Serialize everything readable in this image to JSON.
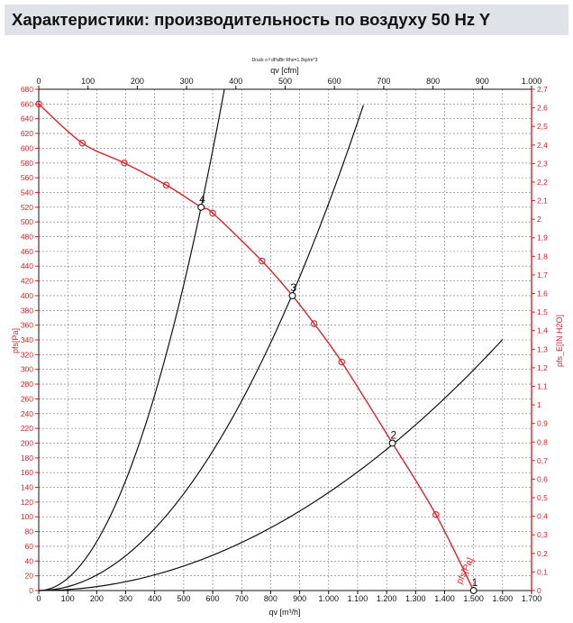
{
  "page": {
    "title": "Характеристики: производительность по воздуху 50 Hz Y"
  },
  "colors": {
    "red": "#e31e24",
    "black": "#111111",
    "grid": "#777777",
    "header_bg": "#dfe3e8"
  },
  "chart_data": {
    "type": "line",
    "subtitle": "Druck o f dPaBir Rho=1.2kp/m^3",
    "xlabel": "qv [m³/h]",
    "x2label": "qv [cfm]",
    "ylabel": "pfs[Pa]",
    "y2label": "pfs_E[IN H2O]",
    "xlim": [
      0,
      1700
    ],
    "x2lim": [
      0,
      1000
    ],
    "ylim": [
      0,
      680
    ],
    "y2lim": [
      0,
      2.7
    ],
    "x_ticks": [
      0,
      100,
      200,
      300,
      400,
      500,
      600,
      700,
      800,
      900,
      1000,
      1100,
      1200,
      1300,
      1400,
      1500,
      1600,
      1700
    ],
    "x_tick_labels": [
      "0",
      "100",
      "200",
      "300",
      "400",
      "500",
      "600",
      "700",
      "800",
      "900",
      "1.000",
      "1.100",
      "1.200",
      "1.300",
      "1.400",
      "1.500",
      "1.600",
      "1.700"
    ],
    "x2_ticks": [
      0,
      100,
      200,
      300,
      400,
      500,
      600,
      700,
      800,
      900,
      1000
    ],
    "x2_tick_labels": [
      "0",
      "100",
      "200",
      "300",
      "400",
      "500",
      "600",
      "700",
      "800",
      "900",
      "1.000"
    ],
    "y_ticks": [
      0,
      20,
      40,
      60,
      80,
      100,
      120,
      140,
      160,
      180,
      200,
      220,
      240,
      260,
      280,
      300,
      320,
      340,
      360,
      380,
      400,
      420,
      440,
      460,
      480,
      500,
      520,
      540,
      560,
      580,
      600,
      620,
      640,
      660,
      680
    ],
    "y2_ticks": [
      0,
      0.1,
      0.2,
      0.3,
      0.4,
      0.5,
      0.6,
      0.7,
      0.8,
      0.9,
      1,
      1.1,
      1.2,
      1.3,
      1.4,
      1.5,
      1.6,
      1.7,
      1.8,
      1.9,
      2,
      2.1,
      2.2,
      2.3,
      2.4,
      2.5,
      2.6,
      2.7
    ],
    "y2_tick_labels": [
      "0",
      "0,1",
      "0,2",
      "0,3",
      "0,4",
      "0,5",
      "0,6",
      "0,7",
      "0,8",
      "0,9",
      "1",
      "1,1",
      "1,2",
      "1,3",
      "1,4",
      "1,5",
      "1,6",
      "1,7",
      "1,8",
      "1,9",
      "2",
      "2,1",
      "2,2",
      "2,3",
      "2,4",
      "2,5",
      "2,6",
      "2,7"
    ],
    "grid": true,
    "fan_curve": {
      "name": "pfs[Pa]",
      "x": [
        0,
        150,
        295,
        440,
        560,
        600,
        770,
        875,
        950,
        1045,
        1220,
        1370,
        1500
      ],
      "y": [
        660,
        607,
        580,
        550,
        520,
        512,
        447,
        400,
        362,
        310,
        200,
        103,
        0
      ],
      "markers_x": [
        0,
        150,
        295,
        440,
        600,
        770,
        950,
        1045,
        1370
      ]
    },
    "system_curves": [
      {
        "name": "system-curve-4",
        "k": 0.001658,
        "x_max": 650
      },
      {
        "name": "system-curve-3",
        "k": 0.000525,
        "x_max": 1120
      },
      {
        "name": "system-curve-2",
        "k": 0.000133,
        "x_max": 1600
      }
    ],
    "operating_points": [
      {
        "label": "1",
        "x": 1500,
        "y": 0
      },
      {
        "label": "2",
        "x": 1220,
        "y": 200
      },
      {
        "label": "3",
        "x": 875,
        "y": 400
      },
      {
        "label": "4",
        "x": 560,
        "y": 520
      }
    ]
  }
}
